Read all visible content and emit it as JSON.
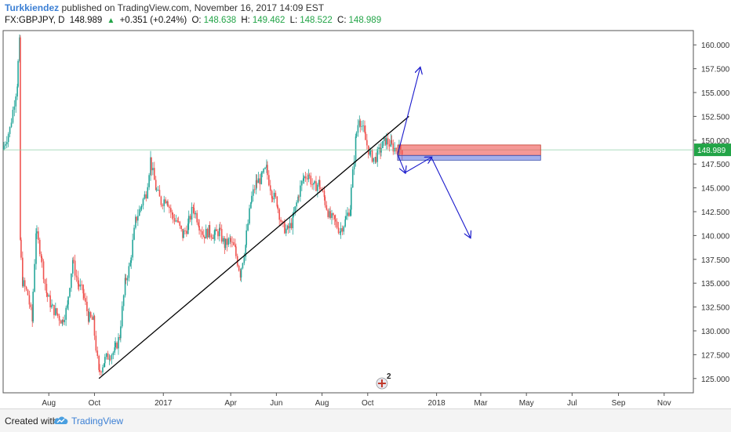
{
  "header": {
    "author": "Turkkiendez",
    "published_text": "published on TradingView.com, November 16, 2017 14:09 EST",
    "symbol": "FX:GBPJPY, D",
    "last": "148.989",
    "change": "+0.351 (+0.24%)",
    "open_label": "O:",
    "open": "148.638",
    "high_label": "H:",
    "high": "149.462",
    "low_label": "L:",
    "low": "148.522",
    "close_label": "C:",
    "close": "148.989"
  },
  "footer": {
    "created_with": "Created with",
    "brand": "TradingView",
    "logo_icon": "tradingview-cloud-icon"
  },
  "colors": {
    "up": "#26a69a",
    "down": "#ef5350",
    "accent": "#3b7fd4",
    "price_tag": "#22a447",
    "arrow": "#1a1acc"
  },
  "chart_data": {
    "type": "candlestick",
    "symbol": "FX:GBPJPY",
    "interval": "D",
    "y_ticks": [
      "160.000",
      "157.500",
      "155.000",
      "152.500",
      "150.000",
      "147.500",
      "145.000",
      "142.500",
      "140.000",
      "137.500",
      "135.000",
      "132.500",
      "130.000",
      "127.500",
      "125.000"
    ],
    "ylim": [
      123.5,
      161.5
    ],
    "x_ticks": [
      "Aug",
      "Oct",
      "2017",
      "Apr",
      "Jun",
      "Aug",
      "Oct",
      "2018",
      "Mar",
      "May",
      "Jul",
      "Sep",
      "Nov"
    ],
    "last_price_label": "148.989",
    "last_price": 148.989,
    "series": [
      {
        "name": "price",
        "points": [
          [
            "2016-06-01",
            149.0
          ],
          [
            "2016-06-10",
            151.2
          ],
          [
            "2016-06-20",
            156.0
          ],
          [
            "2016-06-23",
            160.2
          ],
          [
            "2016-06-24",
            139.5
          ],
          [
            "2016-06-27",
            135.2
          ],
          [
            "2016-07-04",
            133.8
          ],
          [
            "2016-07-10",
            131.0
          ],
          [
            "2016-07-15",
            140.5
          ],
          [
            "2016-07-22",
            138.0
          ],
          [
            "2016-07-29",
            134.0
          ],
          [
            "2016-08-05",
            132.5
          ],
          [
            "2016-08-12",
            131.8
          ],
          [
            "2016-08-19",
            131.0
          ],
          [
            "2016-08-26",
            132.5
          ],
          [
            "2016-09-02",
            137.5
          ],
          [
            "2016-09-09",
            135.0
          ],
          [
            "2016-09-16",
            134.0
          ],
          [
            "2016-09-23",
            131.5
          ],
          [
            "2016-09-30",
            131.0
          ],
          [
            "2016-10-07",
            125.5
          ],
          [
            "2016-10-14",
            126.8
          ],
          [
            "2016-10-21",
            127.5
          ],
          [
            "2016-10-28",
            127.8
          ],
          [
            "2016-11-04",
            129.5
          ],
          [
            "2016-11-11",
            135.0
          ],
          [
            "2016-11-18",
            137.0
          ],
          [
            "2016-11-25",
            141.5
          ],
          [
            "2016-12-02",
            143.0
          ],
          [
            "2016-12-09",
            144.5
          ],
          [
            "2016-12-15",
            148.0
          ],
          [
            "2016-12-22",
            145.0
          ],
          [
            "2016-12-29",
            143.5
          ],
          [
            "2017-01-06",
            144.0
          ],
          [
            "2017-01-13",
            142.0
          ],
          [
            "2017-01-20",
            141.5
          ],
          [
            "2017-01-27",
            140.0
          ],
          [
            "2017-02-03",
            141.0
          ],
          [
            "2017-02-10",
            143.0
          ],
          [
            "2017-02-17",
            141.5
          ],
          [
            "2017-02-24",
            140.0
          ],
          [
            "2017-03-03",
            140.5
          ],
          [
            "2017-03-10",
            140.0
          ],
          [
            "2017-03-17",
            140.5
          ],
          [
            "2017-03-24",
            139.0
          ],
          [
            "2017-03-31",
            139.5
          ],
          [
            "2017-04-07",
            138.5
          ],
          [
            "2017-04-14",
            136.0
          ],
          [
            "2017-04-21",
            139.0
          ],
          [
            "2017-04-28",
            143.5
          ],
          [
            "2017-05-05",
            145.5
          ],
          [
            "2017-05-12",
            146.0
          ],
          [
            "2017-05-19",
            147.0
          ],
          [
            "2017-05-26",
            144.5
          ],
          [
            "2017-06-02",
            143.5
          ],
          [
            "2017-06-09",
            141.0
          ],
          [
            "2017-06-16",
            140.5
          ],
          [
            "2017-06-23",
            141.5
          ],
          [
            "2017-06-30",
            144.0
          ],
          [
            "2017-07-07",
            146.0
          ],
          [
            "2017-07-14",
            146.5
          ],
          [
            "2017-07-21",
            145.0
          ],
          [
            "2017-07-28",
            145.5
          ],
          [
            "2017-08-04",
            144.0
          ],
          [
            "2017-08-11",
            142.0
          ],
          [
            "2017-08-18",
            141.5
          ],
          [
            "2017-08-25",
            140.5
          ],
          [
            "2017-09-01",
            141.5
          ],
          [
            "2017-09-08",
            143.0
          ],
          [
            "2017-09-15",
            150.0
          ],
          [
            "2017-09-20",
            152.5
          ],
          [
            "2017-09-27",
            150.5
          ],
          [
            "2017-10-04",
            148.5
          ],
          [
            "2017-10-11",
            148.0
          ],
          [
            "2017-10-18",
            149.0
          ],
          [
            "2017-10-25",
            150.0
          ],
          [
            "2017-11-01",
            149.5
          ],
          [
            "2017-11-08",
            149.0
          ],
          [
            "2017-11-16",
            148.989
          ]
        ]
      }
    ],
    "drawings": {
      "trendline": [
        [
          "2016-10-07",
          125.0
        ],
        [
          "2017-11-25",
          152.5
        ]
      ],
      "zone_red": {
        "from": "2017-11-10",
        "to": "2018-05-20",
        "top": 149.5,
        "bottom": 148.4
      },
      "zone_blue": {
        "from": "2017-11-10",
        "to": "2018-05-20",
        "top": 148.4,
        "bottom": 147.9
      },
      "arrows": [
        [
          [
            "2017-11-10",
            148.5
          ],
          [
            "2017-12-10",
            157.6
          ]
        ],
        [
          [
            "2017-11-10",
            148.5
          ],
          [
            "2017-11-20",
            146.6
          ]
        ],
        [
          [
            "2017-11-20",
            146.6
          ],
          [
            "2017-12-25",
            148.2
          ]
        ],
        [
          [
            "2017-12-25",
            148.2
          ],
          [
            "2018-02-15",
            139.8
          ]
        ]
      ]
    },
    "marker_label": "2",
    "marker_icon": "uk-flag-event-icon"
  }
}
